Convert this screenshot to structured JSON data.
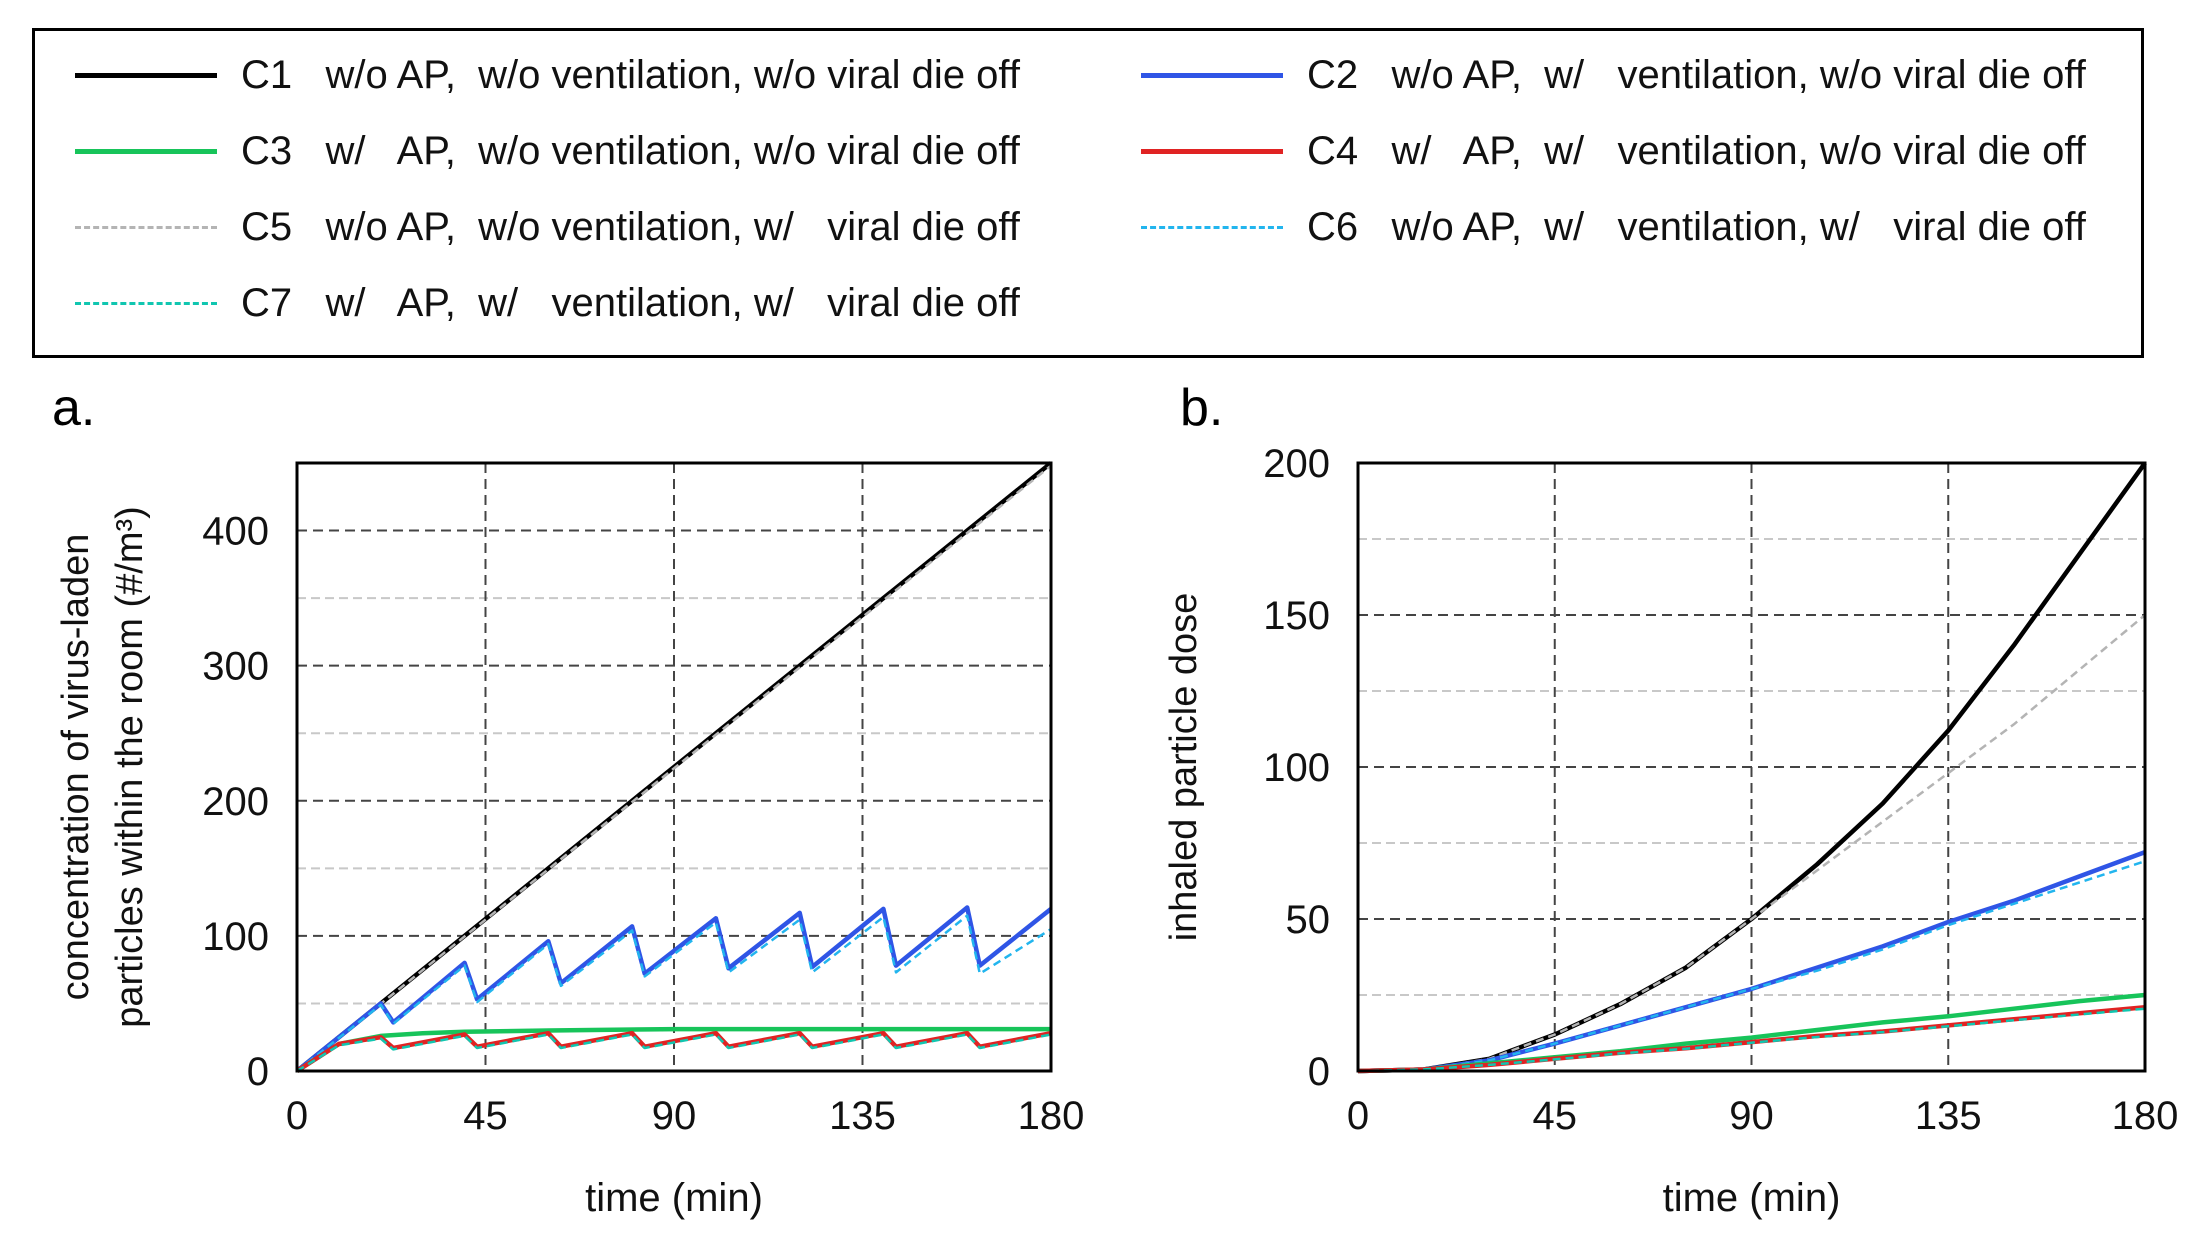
{
  "legend": [
    {
      "label": "C1   w/o AP,  w/o ventilation, w/o viral die off",
      "color": "#000000",
      "style": "solid"
    },
    {
      "label": "C2   w/o AP,  w/   ventilation, w/o viral die off",
      "color": "#2f55e6",
      "style": "solid"
    },
    {
      "label": "C3   w/   AP,  w/o ventilation, w/o viral die off",
      "color": "#17c45a",
      "style": "solid"
    },
    {
      "label": "C4   w/   AP,  w/   ventilation, w/o viral die off",
      "color": "#e02323",
      "style": "solid"
    },
    {
      "label": "C5   w/o AP,  w/o ventilation, w/   viral die off",
      "color": "#b4b4b4",
      "style": "dash"
    },
    {
      "label": "C6   w/o AP,  w/   ventilation, w/   viral die off",
      "color": "#22b5ee",
      "style": "dash"
    },
    {
      "label": "C7   w/   AP,  w/   ventilation, w/   viral die off",
      "color": "#10c6b0",
      "style": "dash"
    }
  ],
  "panels": {
    "a": "a.",
    "b": "b."
  },
  "chart_data": [
    {
      "type": "line",
      "panel": "a",
      "xlabel": "time (min)",
      "ylabel_line1": "concentration of virus-laden",
      "ylabel_line2": "particles within the room  (#/m³)",
      "xlim": [
        0,
        180
      ],
      "ylim": [
        0,
        450
      ],
      "xticks": [
        0,
        45,
        90,
        135,
        180
      ],
      "yticks": [
        0,
        100,
        200,
        300,
        400
      ],
      "series": [
        {
          "name": "C1",
          "x": [
            0,
            180
          ],
          "y": [
            0,
            450
          ]
        },
        {
          "name": "C5",
          "x": [
            0,
            180
          ],
          "y": [
            0,
            448
          ]
        },
        {
          "name": "C2",
          "x": [
            0,
            20,
            23,
            40,
            43,
            60,
            63,
            80,
            83,
            100,
            103,
            120,
            123,
            140,
            143,
            160,
            163,
            180
          ],
          "y": [
            0,
            50,
            36,
            80,
            53,
            96,
            65,
            107,
            72,
            113,
            76,
            117,
            77,
            120,
            78,
            121,
            78,
            120
          ]
        },
        {
          "name": "C6",
          "x": [
            0,
            20,
            23,
            40,
            43,
            60,
            63,
            80,
            83,
            100,
            103,
            120,
            123,
            140,
            143,
            160,
            163,
            180
          ],
          "y": [
            0,
            49,
            35,
            78,
            51,
            94,
            63,
            104,
            70,
            110,
            73,
            112,
            73,
            114,
            73,
            115,
            72,
            105
          ]
        },
        {
          "name": "C3",
          "x": [
            0,
            10,
            20,
            30,
            40,
            60,
            90,
            120,
            150,
            180
          ],
          "y": [
            0,
            20,
            26,
            28,
            29,
            30,
            31,
            31,
            31,
            31
          ]
        },
        {
          "name": "C4",
          "x": [
            0,
            10,
            20,
            23,
            40,
            43,
            60,
            63,
            80,
            83,
            100,
            103,
            120,
            123,
            140,
            143,
            160,
            163,
            180
          ],
          "y": [
            0,
            20,
            25,
            17,
            27,
            18,
            28,
            18,
            28,
            18,
            28,
            18,
            28,
            18,
            28,
            18,
            28,
            18,
            28
          ]
        },
        {
          "name": "C7",
          "x": [
            0,
            10,
            20,
            23,
            40,
            43,
            60,
            63,
            80,
            83,
            100,
            103,
            120,
            123,
            140,
            143,
            160,
            163,
            180
          ],
          "y": [
            0,
            19,
            24,
            16,
            26,
            17,
            27,
            17,
            27,
            17,
            27,
            17,
            27,
            17,
            27,
            17,
            27,
            17,
            27
          ]
        }
      ]
    },
    {
      "type": "line",
      "panel": "b",
      "xlabel": "time (min)",
      "ylabel": "inhaled particle dose",
      "xlim": [
        0,
        180
      ],
      "ylim": [
        0,
        200
      ],
      "xticks": [
        0,
        45,
        90,
        135,
        180
      ],
      "yticks": [
        0,
        50,
        100,
        150,
        200
      ],
      "series": [
        {
          "name": "C1",
          "x": [
            0,
            15,
            30,
            45,
            60,
            75,
            90,
            105,
            120,
            135,
            150,
            165,
            180
          ],
          "y": [
            0,
            0.5,
            4,
            12,
            22,
            34,
            50,
            68,
            88,
            112,
            140,
            170,
            200
          ]
        },
        {
          "name": "C5",
          "x": [
            0,
            15,
            30,
            45,
            60,
            75,
            90,
            105,
            120,
            135,
            150,
            165,
            180
          ],
          "y": [
            0,
            0.5,
            4,
            12,
            22,
            34,
            50,
            66,
            82,
            98,
            114,
            132,
            150
          ]
        },
        {
          "name": "C2",
          "x": [
            0,
            15,
            30,
            45,
            60,
            75,
            90,
            105,
            120,
            135,
            150,
            165,
            180
          ],
          "y": [
            0,
            0.5,
            3.5,
            9,
            15,
            21,
            27,
            34,
            41,
            49,
            56,
            64,
            72
          ]
        },
        {
          "name": "C6",
          "x": [
            0,
            15,
            30,
            45,
            60,
            75,
            90,
            105,
            120,
            135,
            150,
            165,
            180
          ],
          "y": [
            0,
            0.5,
            3.5,
            9,
            15,
            21,
            27,
            33,
            40,
            48,
            55,
            62,
            69
          ]
        },
        {
          "name": "C3",
          "x": [
            0,
            15,
            30,
            45,
            60,
            75,
            90,
            105,
            120,
            135,
            150,
            165,
            180
          ],
          "y": [
            0,
            0.5,
            2.5,
            4.5,
            6.5,
            9,
            11,
            13.5,
            16,
            18,
            20.5,
            23,
            25
          ]
        },
        {
          "name": "C4",
          "x": [
            0,
            15,
            30,
            45,
            60,
            75,
            90,
            105,
            120,
            135,
            150,
            165,
            180
          ],
          "y": [
            0,
            0.5,
            2,
            4,
            6,
            7.5,
            9.5,
            11.5,
            13,
            15,
            17,
            19,
            21
          ]
        },
        {
          "name": "C7",
          "x": [
            0,
            15,
            30,
            45,
            60,
            75,
            90,
            105,
            120,
            135,
            150,
            165,
            180
          ],
          "y": [
            0,
            0.5,
            2,
            3.8,
            5.8,
            7.3,
            9.3,
            11.2,
            12.8,
            14.7,
            16.7,
            18.6,
            20.5
          ]
        }
      ]
    }
  ]
}
